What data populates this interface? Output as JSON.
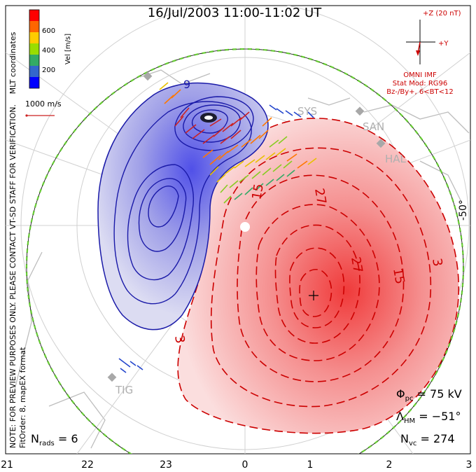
{
  "title": "16/Jul/2003 11:00-11:02 UT",
  "colorbar": {
    "label": "Vel [m/s]",
    "ticks": [
      "600",
      "400",
      "200"
    ],
    "colors": [
      "#ff0000",
      "#ff6600",
      "#ffcc00",
      "#99dd00",
      "#33aa66",
      "#3366cc",
      "#0000ff"
    ]
  },
  "coord_label": "MLT coordinates",
  "preview_note": "NOTE: FOR PREVIEW PURPOSES ONLY. PLEASE CONTACT VT-SD STAFF FOR VERIFICATION.",
  "fit_order": "FitOrder: 8, mapEX format",
  "scale_vector": "1000 m/s",
  "imf": {
    "z_label": "+Z (20 nT)",
    "y_label": "+Y",
    "source": "OMNI IMF",
    "stat_mod": "Stat Mod: RG96",
    "bin": "Bz-/By+, 6<BT<12"
  },
  "latitude_label": "-50°",
  "contour_labels": {
    "neg": "9",
    "pos": [
      "27",
      "15",
      "27",
      "15",
      "3",
      "3"
    ]
  },
  "stations": [
    "SYS",
    "SAN",
    "HAL",
    "TIG"
  ],
  "stats": {
    "phi_sym": "Φ",
    "phi_sub": "pc",
    "phi_val": " = 75 kV",
    "lam_sym": "Λ",
    "lam_sub": "HM",
    "lam_val": " = −51°",
    "nvc_sym": "N",
    "nvc_sub": "vc",
    "nvc_val": " = 274",
    "nrads_sym": "N",
    "nrads_sub": "rads",
    "nrads_val": " = 6"
  },
  "mlt_axis": [
    "21",
    "22",
    "23",
    "0",
    "1",
    "2",
    "3"
  ],
  "colors": {
    "positive": "#cc0000",
    "negative": "#1a1aa8",
    "boundary": "#66cc33"
  }
}
